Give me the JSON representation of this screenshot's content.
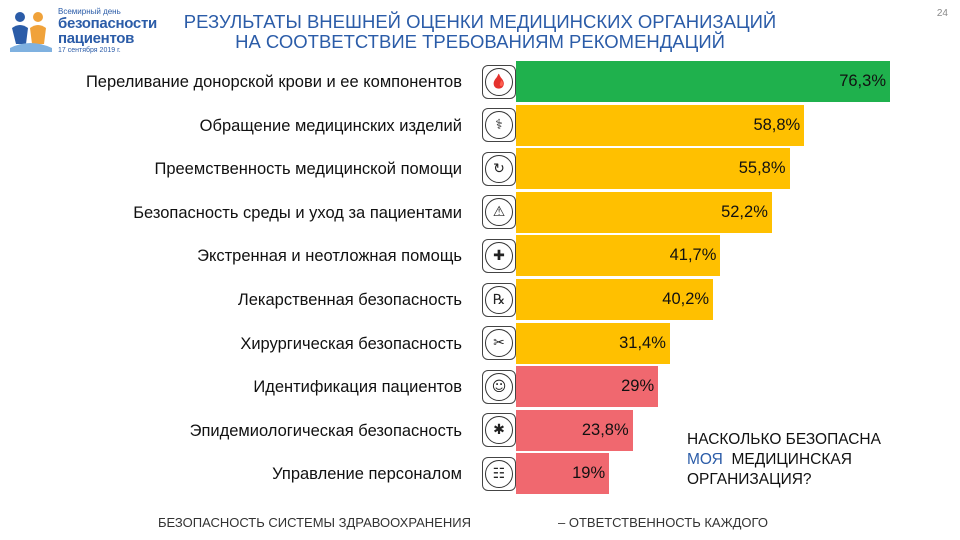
{
  "logo": {
    "line1": "Всемирный день",
    "line2": "безопасности",
    "line3": "пациентов",
    "date": "17 сентября 2019 г."
  },
  "title": {
    "line1": "Результаты внешней оценки медицинских организаций",
    "line2": "на соответствие требованиям рекомендаций"
  },
  "page_number": "24",
  "colors": {
    "green": "#1fb14d",
    "yellow": "#ffc000",
    "red": "#f0686f",
    "accent": "#2b5ca8"
  },
  "chart_data": {
    "type": "bar",
    "orientation": "horizontal",
    "categories": [
      "Переливание донорской крови и ее компонентов",
      "Обращение медицинских изделий",
      "Преемственность медицинской помощи",
      "Безопасность среды и уход за пациентами",
      "Экстренная и неотложная помощь",
      "Лекарственная безопасность",
      "Хирургическая безопасность",
      "Идентификация пациентов",
      "Эпидемиологическая безопасность",
      "Управление персоналом"
    ],
    "values": [
      76.3,
      58.8,
      55.8,
      52.2,
      41.7,
      40.2,
      31.4,
      29,
      23.8,
      19
    ],
    "value_labels": [
      "76,3%",
      "58,8%",
      "55,8%",
      "52,2%",
      "41,7%",
      "40,2%",
      "31,4%",
      "29%",
      "23,8%",
      "19%"
    ],
    "bar_colors": [
      "green",
      "yellow",
      "yellow",
      "yellow",
      "yellow",
      "yellow",
      "yellow",
      "red",
      "red",
      "red"
    ],
    "icons": [
      "blood-bag-icon",
      "medical-devices-icon",
      "continuity-of-care-icon",
      "slip-hazard-icon",
      "ambulance-icon",
      "medications-icon",
      "surgical-scissors-icon",
      "patient-id-icon",
      "virus-icon",
      "personnel-icon"
    ],
    "xlim": [
      0,
      100
    ],
    "title": "Результаты внешней оценки медицинских организаций на соответствие требованиям рекомендаций",
    "xlabel": "",
    "ylabel": "",
    "grid": false,
    "legend": "none"
  },
  "question": {
    "line1": "Насколько безопасна",
    "accent_word": "моя",
    "line2_rest": "медицинская",
    "line3": "организация?"
  },
  "footer": {
    "left": "Безопасность системы здравоохранения",
    "right": "– ответственность каждого"
  }
}
